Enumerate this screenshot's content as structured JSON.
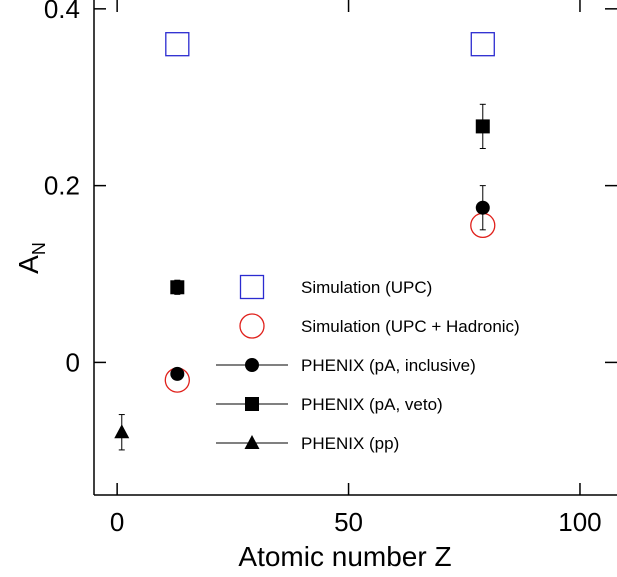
{
  "chart_data": {
    "type": "scatter",
    "xlabel": "Atomic number Z",
    "ylabel_main": "A",
    "ylabel_sub": "N",
    "xlim": [
      -5,
      108
    ],
    "ylim": [
      -0.15,
      0.41
    ],
    "xticks": [
      {
        "value": 0,
        "label": "0"
      },
      {
        "value": 50,
        "label": "50"
      },
      {
        "value": 100,
        "label": "100"
      }
    ],
    "yticks": [
      {
        "value": 0,
        "label": "0"
      },
      {
        "value": 0.2,
        "label": "0.2"
      },
      {
        "value": 0.4,
        "label": "0.4"
      }
    ],
    "series": [
      {
        "name": "Simulation (UPC)",
        "marker": "open-square",
        "color": "#2b2bd0",
        "points": [
          {
            "x": 13,
            "y": 0.36
          },
          {
            "x": 79,
            "y": 0.36
          }
        ]
      },
      {
        "name": "Simulation (UPC + Hadronic)",
        "marker": "open-circle",
        "color": "#e0201b",
        "points": [
          {
            "x": 13,
            "y": -0.02
          },
          {
            "x": 79,
            "y": 0.155
          }
        ]
      },
      {
        "name": "PHENIX (pA, inclusive)",
        "marker": "filled-circle",
        "color": "#000000",
        "points": [
          {
            "x": 13,
            "y": -0.013,
            "err": 0.004
          },
          {
            "x": 79,
            "y": 0.175,
            "err": 0.025
          }
        ]
      },
      {
        "name": "PHENIX (pA, veto)",
        "marker": "filled-square",
        "color": "#000000",
        "points": [
          {
            "x": 13,
            "y": 0.085,
            "err": 0.008
          },
          {
            "x": 79,
            "y": 0.267,
            "err": 0.025
          }
        ]
      },
      {
        "name": "PHENIX (pp)",
        "marker": "filled-triangle",
        "color": "#000000",
        "points": [
          {
            "x": 1,
            "y": -0.079,
            "err": 0.02
          }
        ]
      }
    ]
  }
}
